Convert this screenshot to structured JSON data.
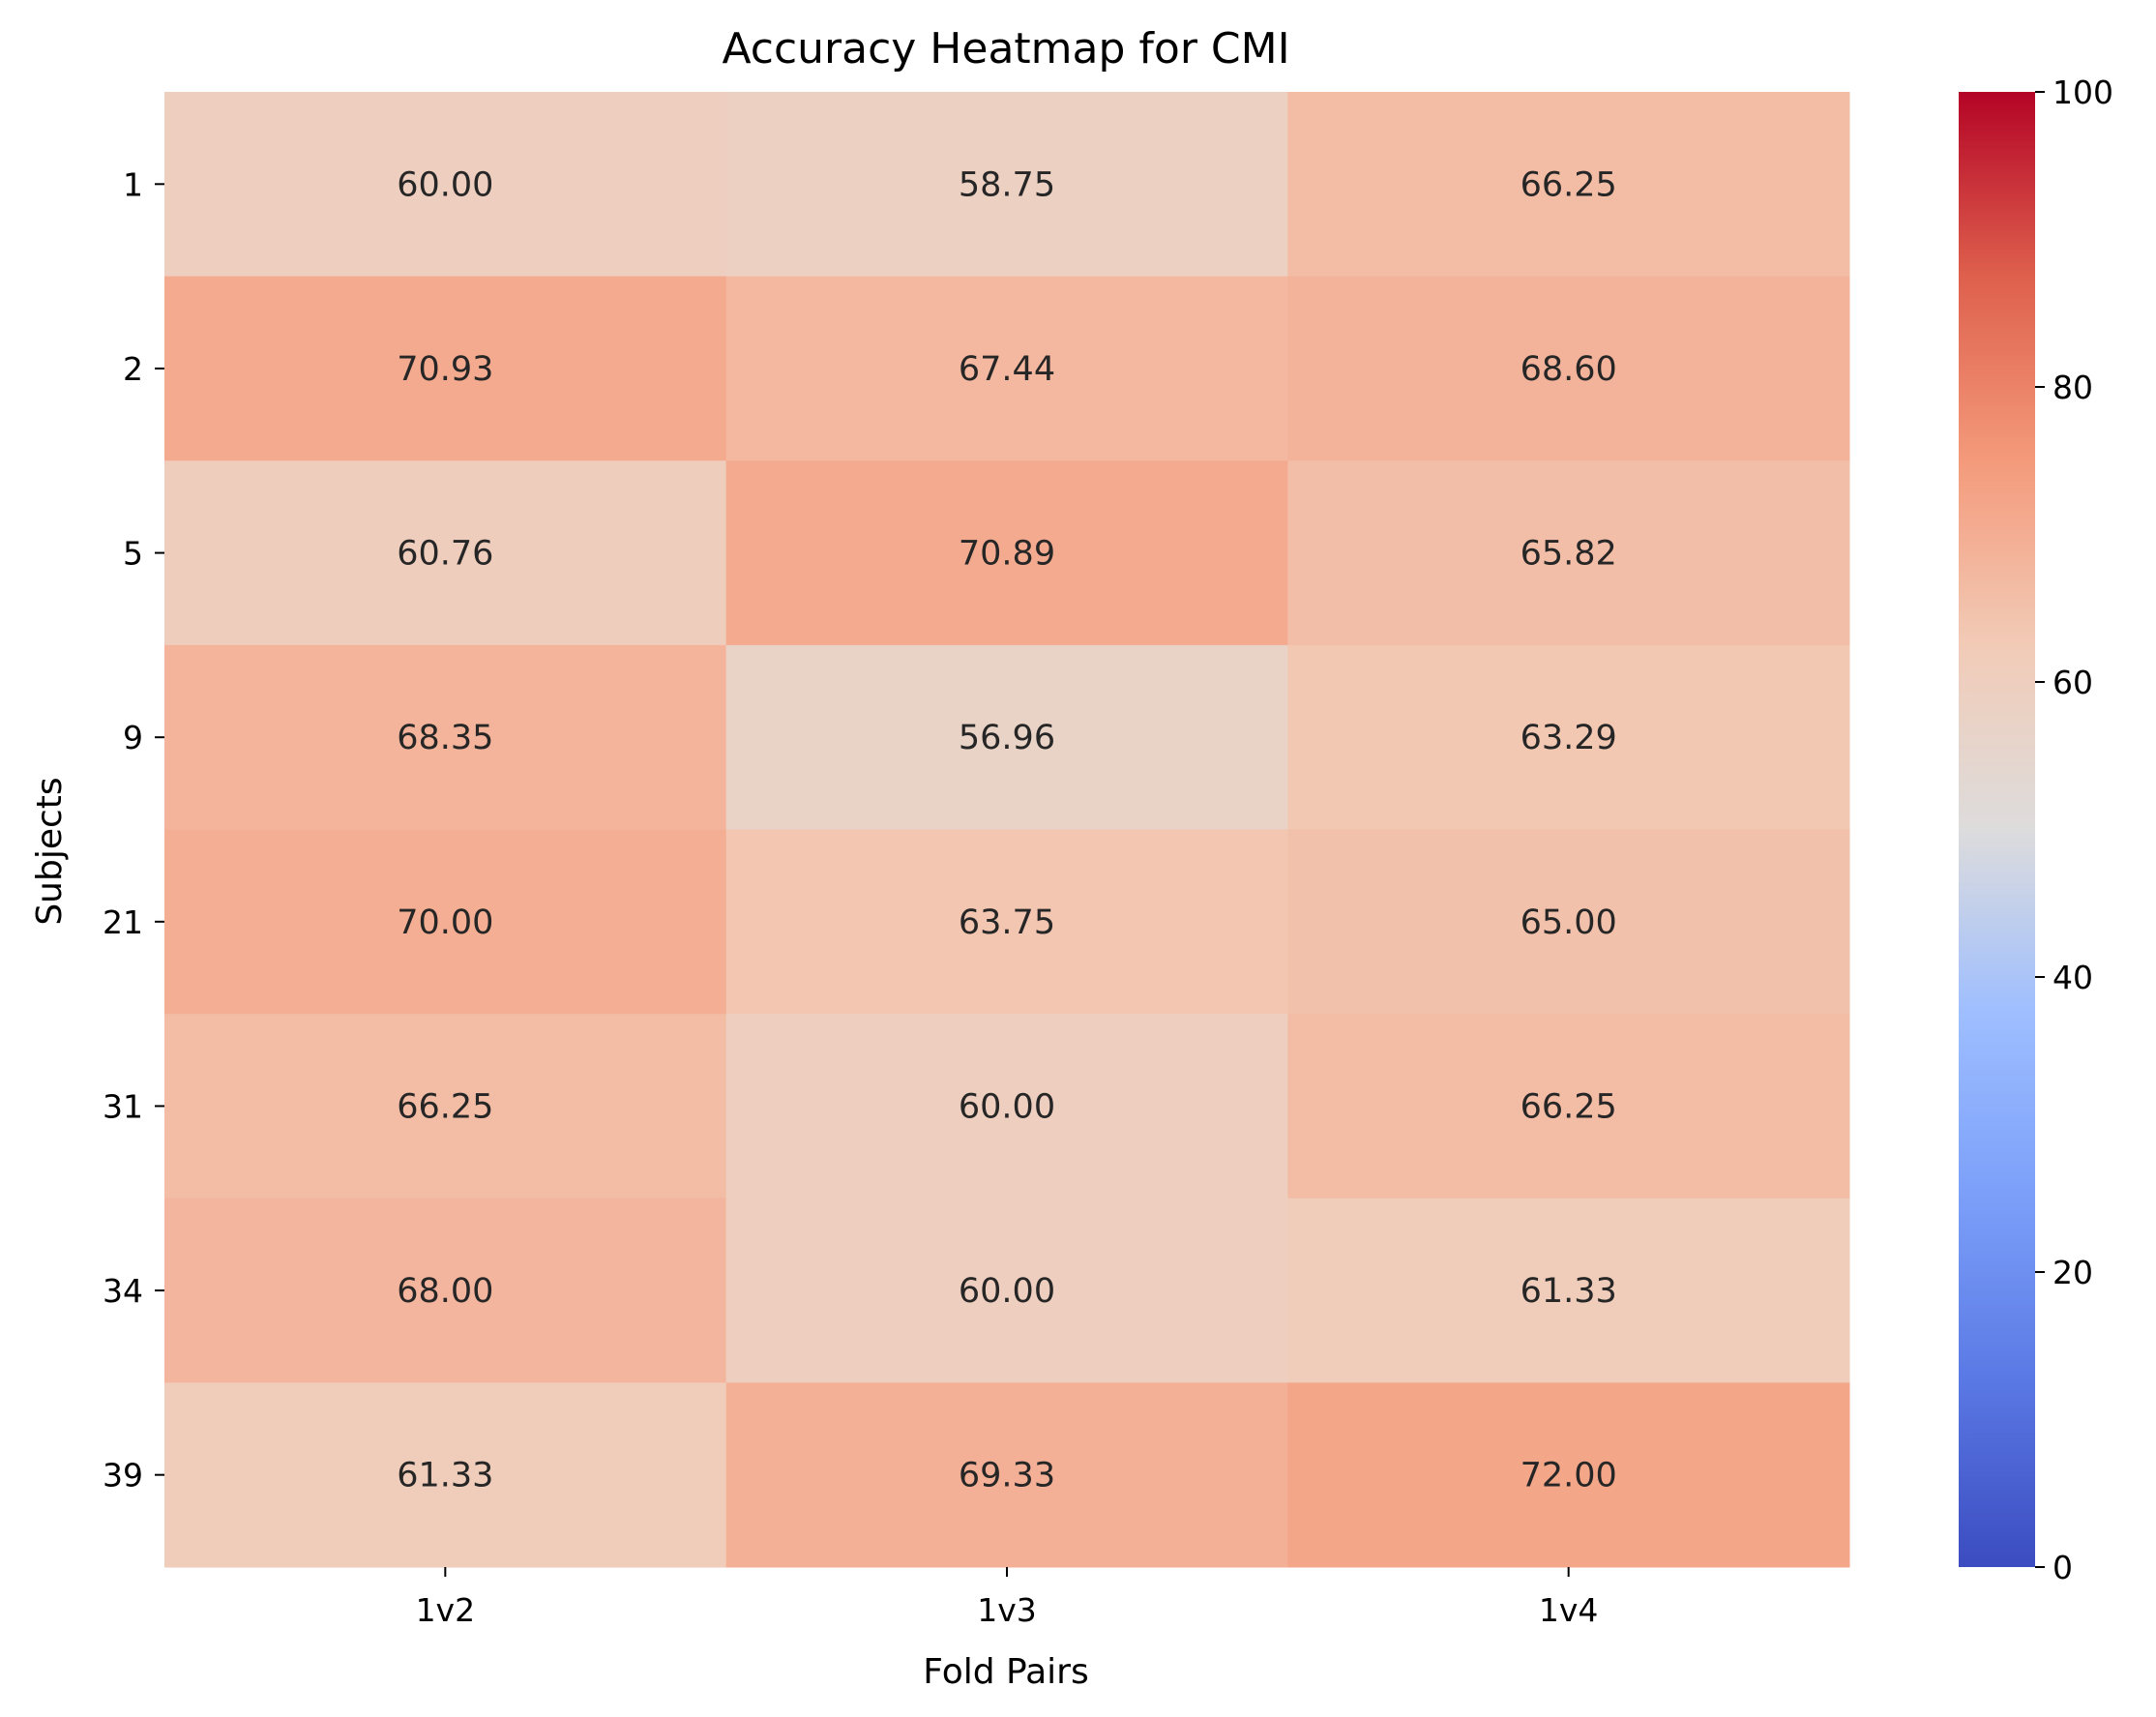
{
  "chart_data": {
    "type": "heatmap",
    "title": "Accuracy Heatmap for CMI",
    "xlabel": "Fold Pairs",
    "ylabel": "Subjects",
    "x_categories": [
      "1v2",
      "1v3",
      "1v4"
    ],
    "y_categories": [
      "1",
      "2",
      "5",
      "9",
      "21",
      "31",
      "34",
      "39"
    ],
    "values": [
      [
        60.0,
        58.75,
        66.25
      ],
      [
        70.93,
        67.44,
        68.6
      ],
      [
        60.76,
        70.89,
        65.82
      ],
      [
        68.35,
        56.96,
        63.29
      ],
      [
        70.0,
        63.75,
        65.0
      ],
      [
        66.25,
        60.0,
        66.25
      ],
      [
        68.0,
        60.0,
        61.33
      ],
      [
        61.33,
        69.33,
        72.0
      ]
    ],
    "value_labels": [
      [
        "60.00",
        "58.75",
        "66.25"
      ],
      [
        "70.93",
        "67.44",
        "68.60"
      ],
      [
        "60.76",
        "70.89",
        "65.82"
      ],
      [
        "68.35",
        "56.96",
        "63.29"
      ],
      [
        "70.00",
        "63.75",
        "65.00"
      ],
      [
        "66.25",
        "60.00",
        "66.25"
      ],
      [
        "68.00",
        "60.00",
        "61.33"
      ],
      [
        "61.33",
        "69.33",
        "72.00"
      ]
    ],
    "colormap": "coolwarm",
    "colorbar": {
      "range": [
        0,
        100
      ],
      "ticks": [
        0,
        20,
        40,
        60,
        80,
        100
      ],
      "tick_labels": [
        "0",
        "20",
        "40",
        "60",
        "80",
        "100"
      ],
      "placement": "right"
    },
    "grid": false
  }
}
